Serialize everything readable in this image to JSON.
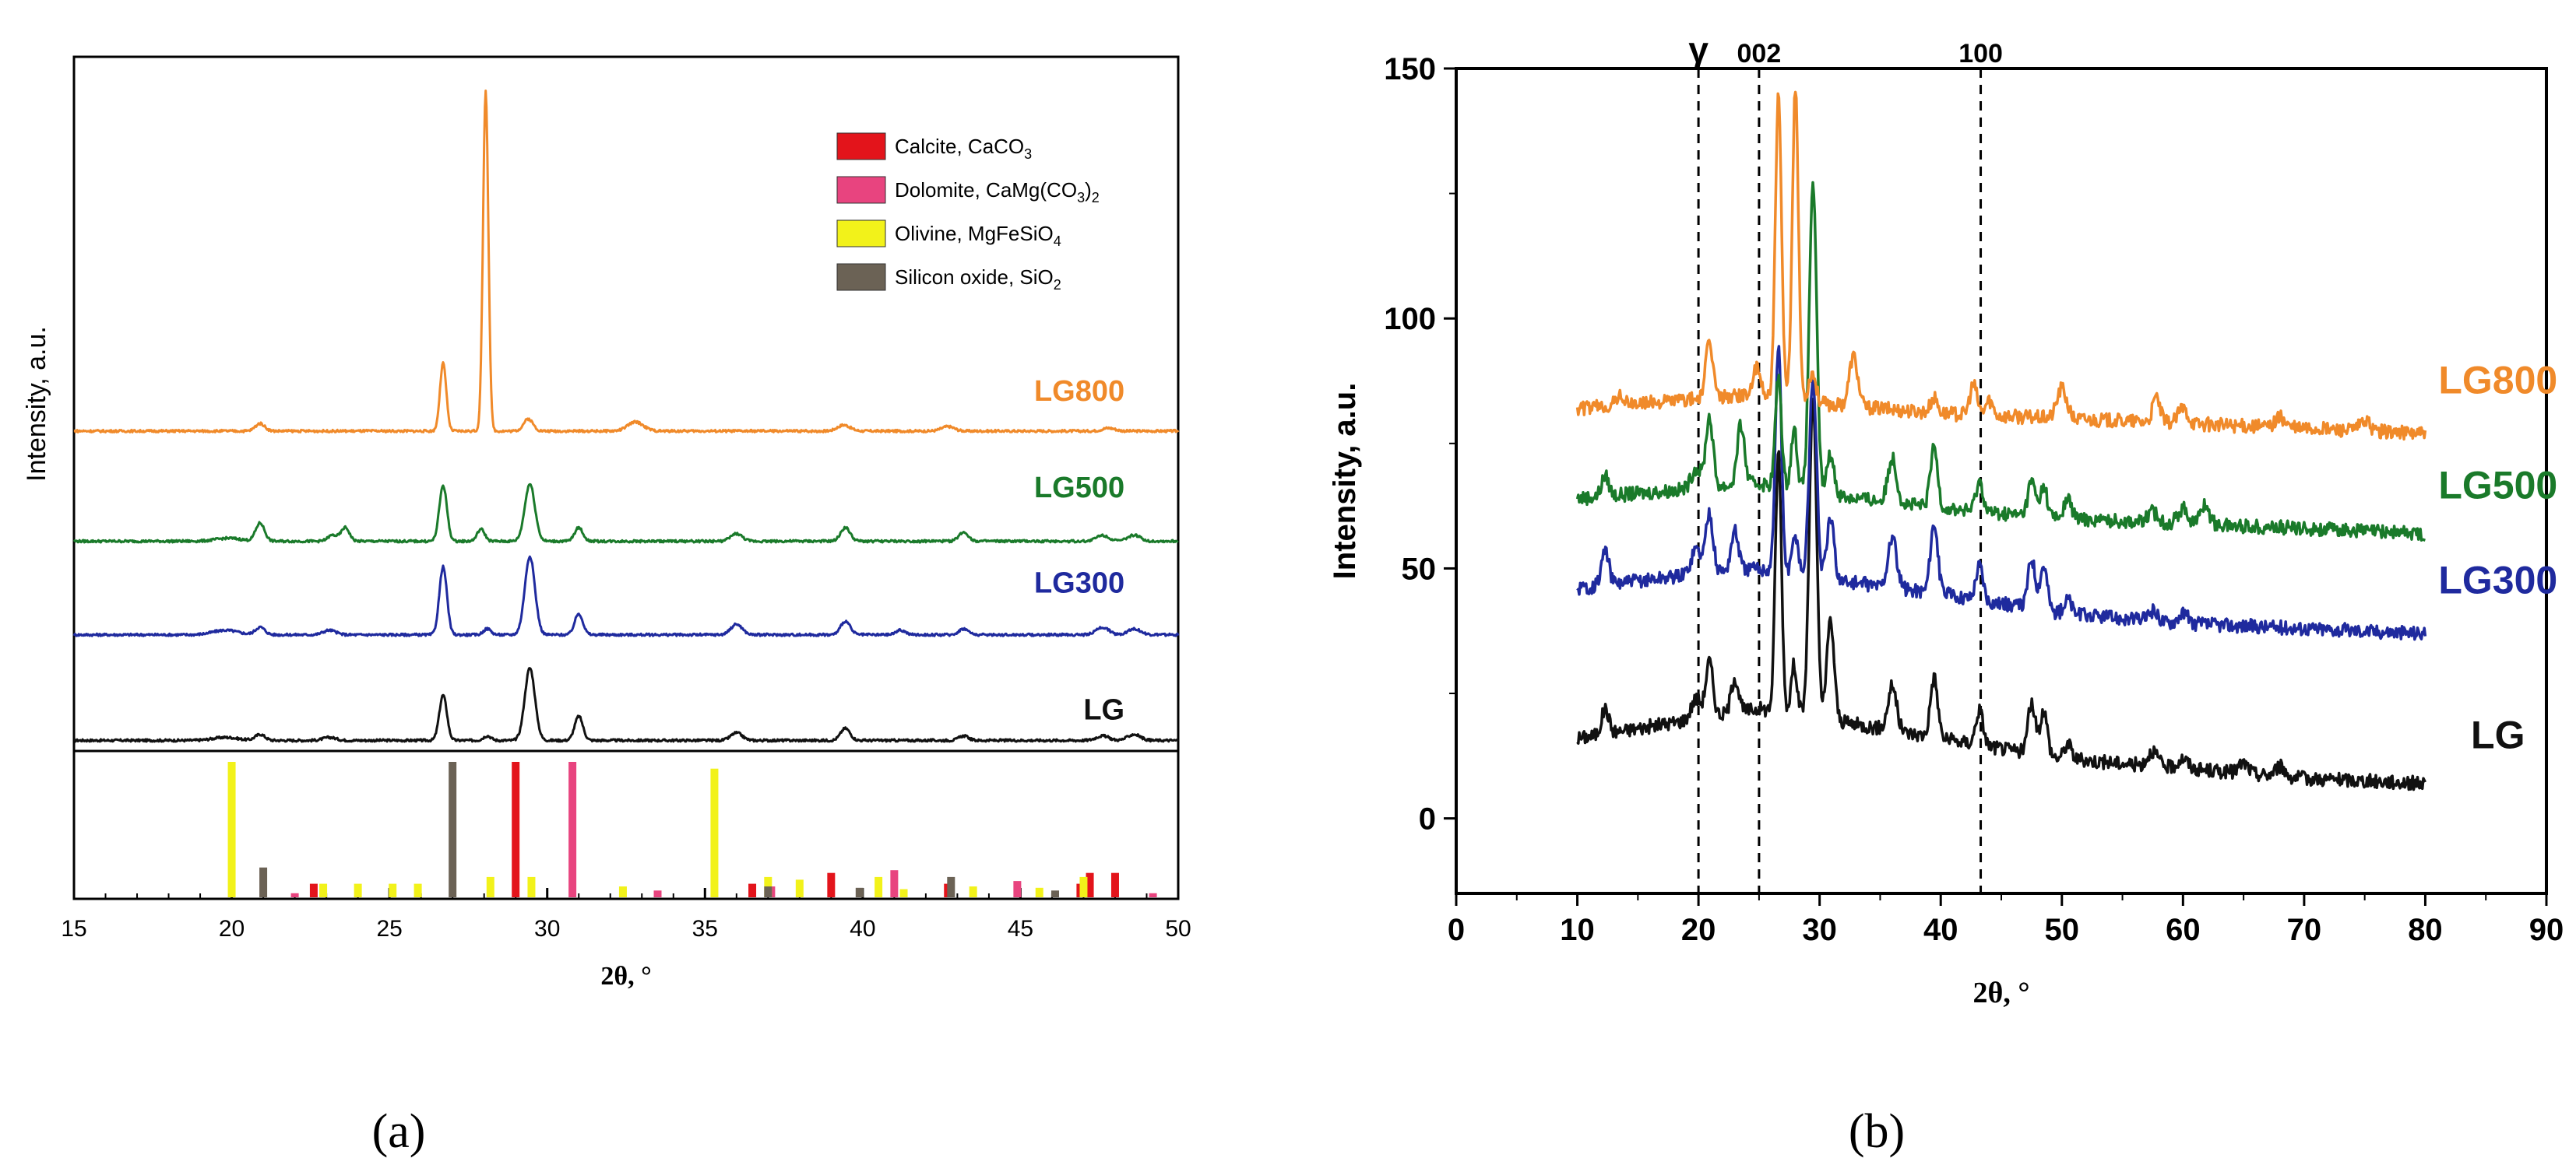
{
  "figure": {
    "panel_a_label": "(a)",
    "panel_b_label": "(b)"
  },
  "colors": {
    "LG": "#111111",
    "LG300": "#1f2a9e",
    "LG500": "#1a7a2a",
    "LG800": "#f08a2a",
    "calcite": "#e3141b",
    "dolomite": "#e8447f",
    "olivine": "#f2f21a",
    "silicon_oxide": "#6b6255",
    "axis": "#000000"
  },
  "chart_data": [
    {
      "id": "a",
      "type": "line",
      "title": "",
      "xlabel": "2θ, °",
      "ylabel": "Intensity, a.u.",
      "xlim": [
        15,
        50
      ],
      "xticks": [
        15,
        20,
        25,
        30,
        35,
        40,
        45,
        50
      ],
      "y_tick_labels": false,
      "series": [
        {
          "name": "LG",
          "offset": 0,
          "baseline": 2,
          "peaks": [
            [
              19.8,
              2,
              0.4
            ],
            [
              20.9,
              4,
              0.15
            ],
            [
              23.1,
              2,
              0.2
            ],
            [
              26.7,
              30,
              0.12
            ],
            [
              28.1,
              3,
              0.12
            ],
            [
              29.45,
              48,
              0.16
            ],
            [
              31.0,
              16,
              0.13
            ],
            [
              36.0,
              5,
              0.18
            ],
            [
              39.45,
              8,
              0.15
            ],
            [
              43.2,
              3,
              0.15
            ],
            [
              47.6,
              3,
              0.2
            ],
            [
              48.6,
              4,
              0.2
            ]
          ]
        },
        {
          "name": "LG300",
          "offset": 70,
          "baseline": 2,
          "peaks": [
            [
              19.8,
              3,
              0.4
            ],
            [
              20.9,
              5,
              0.15
            ],
            [
              23.1,
              3,
              0.2
            ],
            [
              26.7,
              45,
              0.12
            ],
            [
              28.1,
              4,
              0.12
            ],
            [
              29.45,
              52,
              0.16
            ],
            [
              31.0,
              14,
              0.13
            ],
            [
              36.0,
              7,
              0.18
            ],
            [
              39.45,
              9,
              0.15
            ],
            [
              41.2,
              3,
              0.15
            ],
            [
              43.2,
              4,
              0.15
            ],
            [
              47.6,
              5,
              0.2
            ],
            [
              48.6,
              4,
              0.2
            ]
          ]
        },
        {
          "name": "LG500",
          "offset": 132,
          "baseline": 2,
          "peaks": [
            [
              19.9,
              2,
              0.4
            ],
            [
              20.9,
              12,
              0.14
            ],
            [
              23.2,
              4,
              0.15
            ],
            [
              23.6,
              9,
              0.13
            ],
            [
              26.7,
              37,
              0.12
            ],
            [
              27.9,
              8,
              0.12
            ],
            [
              29.45,
              38,
              0.16
            ],
            [
              31.0,
              9,
              0.13
            ],
            [
              36.0,
              5,
              0.18
            ],
            [
              39.45,
              9,
              0.15
            ],
            [
              43.2,
              6,
              0.15
            ],
            [
              47.6,
              4,
              0.2
            ],
            [
              48.6,
              4,
              0.2
            ]
          ]
        },
        {
          "name": "LG800",
          "offset": 205,
          "baseline": 2,
          "peaks": [
            [
              20.9,
              5,
              0.15
            ],
            [
              26.7,
              45,
              0.1
            ],
            [
              28.05,
              225,
              0.085
            ],
            [
              29.4,
              8,
              0.15
            ],
            [
              32.8,
              6,
              0.25
            ],
            [
              39.4,
              4,
              0.2
            ],
            [
              42.7,
              3,
              0.2
            ],
            [
              47.8,
              2,
              0.2
            ]
          ]
        }
      ],
      "series_labels": [
        {
          "name": "LG",
          "x": 48.3,
          "y": 16
        },
        {
          "name": "LG300",
          "x": 48.3,
          "y": 100
        },
        {
          "name": "LG500",
          "x": 48.3,
          "y": 163
        },
        {
          "name": "LG800",
          "x": 48.3,
          "y": 227
        }
      ],
      "ylim": [
        -5,
        455
      ],
      "reference_phases": [
        {
          "name": "Calcite, CaCO",
          "sub1": "3",
          "mid": "",
          "sub2": "",
          "color_key": "calcite",
          "sticks": [
            [
              22.6,
              0.1
            ],
            [
              29.0,
              1.0
            ],
            [
              36.5,
              0.1
            ],
            [
              39.0,
              0.18
            ],
            [
              42.7,
              0.1
            ],
            [
              46.9,
              0.1
            ],
            [
              47.2,
              0.18
            ],
            [
              48.0,
              0.18
            ]
          ]
        },
        {
          "name": "Dolomite, CaMg(CO",
          "sub1": "3",
          "mid": ")",
          "sub2": "2",
          "color_key": "dolomite",
          "sticks": [
            [
              22.0,
              0.03
            ],
            [
              30.8,
              1.0
            ],
            [
              33.5,
              0.05
            ],
            [
              37.1,
              0.08
            ],
            [
              41.0,
              0.2
            ],
            [
              44.9,
              0.12
            ],
            [
              49.2,
              0.03
            ]
          ]
        },
        {
          "name": "Olivine, MgFeSiO",
          "sub1": "4",
          "mid": "",
          "sub2": "",
          "color_key": "olivine",
          "sticks": [
            [
              20.0,
              1.0
            ],
            [
              22.9,
              0.1
            ],
            [
              24.0,
              0.1
            ],
            [
              25.1,
              0.1
            ],
            [
              25.9,
              0.1
            ],
            [
              28.2,
              0.15
            ],
            [
              29.5,
              0.15
            ],
            [
              32.4,
              0.08
            ],
            [
              35.3,
              0.95
            ],
            [
              37.0,
              0.15
            ],
            [
              38.0,
              0.13
            ],
            [
              40.5,
              0.15
            ],
            [
              41.3,
              0.06
            ],
            [
              43.5,
              0.08
            ],
            [
              45.6,
              0.07
            ],
            [
              47.0,
              0.15
            ]
          ]
        },
        {
          "name": "Silicon oxide, SiO",
          "sub1": "2",
          "mid": "",
          "sub2": "",
          "color_key": "silicon_oxide",
          "sticks": [
            [
              21.0,
              0.22
            ],
            [
              27.0,
              1.0
            ],
            [
              37.0,
              0.08
            ],
            [
              39.9,
              0.07
            ],
            [
              42.8,
              0.15
            ],
            [
              46.1,
              0.05
            ]
          ]
        }
      ]
    },
    {
      "id": "b",
      "type": "line",
      "title": "",
      "xlabel": "2θ, °",
      "ylabel": "Intensity, a.u.",
      "xlim": [
        0,
        90
      ],
      "ylim": [
        -15,
        150
      ],
      "xticks": [
        0,
        10,
        20,
        30,
        40,
        50,
        60,
        70,
        80,
        90
      ],
      "yticks": [
        0,
        50,
        100,
        150
      ],
      "reference_lines": [
        {
          "x": 20,
          "label": "γ"
        },
        {
          "x": 25,
          "label": "002"
        },
        {
          "x": 43.3,
          "label": "100"
        }
      ],
      "series": [
        {
          "name": "LG",
          "offset": 0,
          "baseline_pts": [
            [
              10,
              16
            ],
            [
              20,
              20
            ],
            [
              25,
              22
            ],
            [
              30,
              20
            ],
            [
              40,
              16
            ],
            [
              50,
              12
            ],
            [
              60,
              10
            ],
            [
              70,
              8
            ],
            [
              80,
              7
            ]
          ],
          "peaks": [
            [
              12.3,
              5,
              0.3
            ],
            [
              19.8,
              4,
              0.4
            ],
            [
              20.9,
              11,
              0.3
            ],
            [
              23.0,
              7,
              0.3
            ],
            [
              26.6,
              52,
              0.25
            ],
            [
              27.9,
              10,
              0.25
            ],
            [
              29.45,
              64,
              0.3
            ],
            [
              30.9,
              20,
              0.3
            ],
            [
              36.0,
              9,
              0.35
            ],
            [
              39.45,
              12,
              0.3
            ],
            [
              43.2,
              7,
              0.3
            ],
            [
              47.5,
              10,
              0.3
            ],
            [
              48.5,
              9,
              0.3
            ],
            [
              50.5,
              3,
              0.3
            ],
            [
              57.5,
              3,
              0.4
            ],
            [
              60.0,
              2,
              0.4
            ],
            [
              65.0,
              2,
              0.4
            ],
            [
              68.0,
              2,
              0.4
            ]
          ]
        },
        {
          "name": "LG300",
          "offset": 0,
          "baseline_pts": [
            [
              10,
              46
            ],
            [
              20,
              49
            ],
            [
              25,
              50
            ],
            [
              30,
              48
            ],
            [
              40,
              45
            ],
            [
              50,
              41
            ],
            [
              60,
              39
            ],
            [
              70,
              38
            ],
            [
              80,
              37
            ]
          ],
          "peaks": [
            [
              12.3,
              7,
              0.3
            ],
            [
              19.8,
              5,
              0.4
            ],
            [
              20.9,
              12,
              0.3
            ],
            [
              23.0,
              8,
              0.3
            ],
            [
              26.6,
              45,
              0.25
            ],
            [
              28.0,
              8,
              0.25
            ],
            [
              29.45,
              40,
              0.3
            ],
            [
              30.9,
              12,
              0.3
            ],
            [
              36.0,
              10,
              0.35
            ],
            [
              39.45,
              14,
              0.3
            ],
            [
              43.2,
              7,
              0.3
            ],
            [
              47.5,
              10,
              0.3
            ],
            [
              48.5,
              9,
              0.3
            ],
            [
              50.5,
              3,
              0.3
            ],
            [
              57.5,
              2,
              0.4
            ],
            [
              60.0,
              2,
              0.4
            ]
          ]
        },
        {
          "name": "LG500",
          "offset": 0,
          "baseline_pts": [
            [
              10,
              64
            ],
            [
              20,
              66
            ],
            [
              25,
              67
            ],
            [
              30,
              65
            ],
            [
              40,
              62
            ],
            [
              50,
              60
            ],
            [
              60,
              59
            ],
            [
              70,
              58
            ],
            [
              80,
              57
            ]
          ],
          "peaks": [
            [
              12.3,
              4,
              0.3
            ],
            [
              19.8,
              4,
              0.4
            ],
            [
              20.9,
              14,
              0.3
            ],
            [
              23.5,
              12,
              0.3
            ],
            [
              26.6,
              22,
              0.25
            ],
            [
              27.9,
              12,
              0.25
            ],
            [
              29.45,
              62,
              0.3
            ],
            [
              30.9,
              8,
              0.3
            ],
            [
              36.0,
              9,
              0.35
            ],
            [
              39.45,
              12,
              0.3
            ],
            [
              43.2,
              6,
              0.3
            ],
            [
              47.5,
              7,
              0.3
            ],
            [
              48.5,
              6,
              0.3
            ],
            [
              50.5,
              4,
              0.3
            ],
            [
              57.5,
              2,
              0.4
            ],
            [
              60.0,
              3,
              0.4
            ],
            [
              61.8,
              4,
              0.35
            ]
          ]
        },
        {
          "name": "LG800",
          "offset": 0,
          "baseline_pts": [
            [
              10,
              82
            ],
            [
              20,
              84
            ],
            [
              25,
              85
            ],
            [
              30,
              83
            ],
            [
              40,
              81
            ],
            [
              50,
              80
            ],
            [
              60,
              79
            ],
            [
              70,
              78
            ],
            [
              80,
              77
            ]
          ],
          "peaks": [
            [
              13.5,
              2,
              0.3
            ],
            [
              20.9,
              11,
              0.3
            ],
            [
              24.8,
              5,
              0.3
            ],
            [
              26.6,
              60,
              0.25
            ],
            [
              28.0,
              62,
              0.25
            ],
            [
              29.4,
              6,
              0.3
            ],
            [
              32.8,
              10,
              0.35
            ],
            [
              39.45,
              3,
              0.3
            ],
            [
              42.7,
              6,
              0.3
            ],
            [
              44.0,
              3,
              0.3
            ],
            [
              50.0,
              6,
              0.4
            ],
            [
              57.8,
              5,
              0.3
            ],
            [
              60.0,
              3,
              0.4
            ],
            [
              68.0,
              2,
              0.4
            ],
            [
              75.0,
              2,
              0.4
            ]
          ]
        }
      ],
      "series_labels": [
        {
          "name": "LG",
          "x": 86,
          "y": 14
        },
        {
          "name": "LG300",
          "x": 86,
          "y": 45
        },
        {
          "name": "LG500",
          "x": 86,
          "y": 64
        },
        {
          "name": "LG800",
          "x": 86,
          "y": 85
        }
      ]
    }
  ]
}
